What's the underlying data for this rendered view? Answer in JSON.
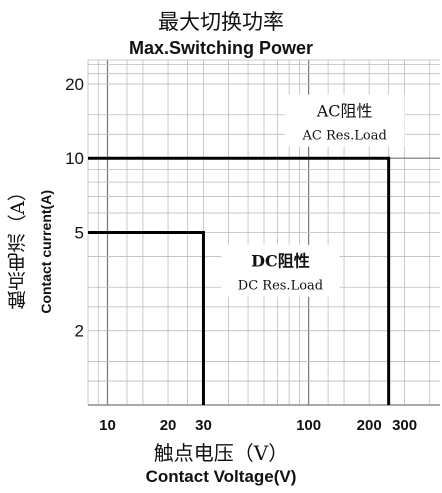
{
  "chart_data": {
    "type": "line",
    "title_cn": "最大切换功率",
    "title": "Max.Switching Power",
    "xlabel_cn": "触点电压（V）",
    "xlabel": "Contact Voltage(V)",
    "ylabel_cn": "触点电流（A）",
    "ylabel": "Contact current(A)",
    "x_scale": "log",
    "y_scale": "log",
    "xlim": [
      8,
      450
    ],
    "ylim": [
      1,
      25
    ],
    "x_ticks": [
      {
        "value": 10,
        "label": "10"
      },
      {
        "value": 20,
        "label": "20"
      },
      {
        "value": 30,
        "label": "30"
      },
      {
        "value": 100,
        "label": "100"
      },
      {
        "value": 200,
        "label": "200"
      },
      {
        "value": 300,
        "label": "300"
      }
    ],
    "y_ticks": [
      {
        "value": 2,
        "label": "2"
      },
      {
        "value": 5,
        "label": "5"
      },
      {
        "value": 10,
        "label": "10"
      },
      {
        "value": 20,
        "label": "20"
      }
    ],
    "grid": true,
    "series": [
      {
        "name_cn": "AC阻性",
        "name": "AC Res.Load",
        "x": [
          8,
          250,
          250
        ],
        "y": [
          10,
          10,
          1
        ]
      },
      {
        "name_cn": "DC阻性",
        "name": "DC Res.Load",
        "x": [
          8,
          30,
          30
        ],
        "y": [
          5,
          5,
          1
        ]
      }
    ]
  }
}
